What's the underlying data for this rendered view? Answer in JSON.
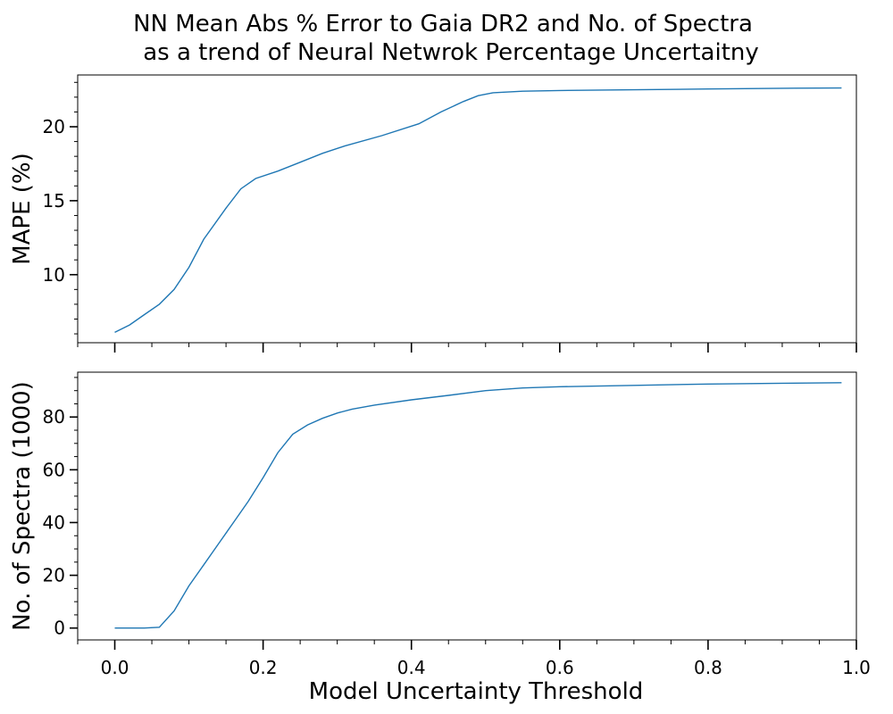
{
  "figure": {
    "title_line1": "NN Mean Abs % Error to Gaia DR2 and No. of Spectra",
    "title_line2": "as a trend of Neural Netwrok Percentage Uncertaitny"
  },
  "chart_data": [
    {
      "type": "line",
      "ylabel": "MAPE (%)",
      "xlim": [
        -0.05,
        1.0
      ],
      "ylim": [
        5.4,
        23.5
      ],
      "yticks": [
        10,
        15,
        20
      ],
      "yminor_step": 1,
      "xticks_major": [
        0.0,
        0.2,
        0.4,
        0.6,
        0.8,
        1.0
      ],
      "xtick_labels_shown": false,
      "series": [
        {
          "color": "#1f77b4",
          "x": [
            0.0,
            0.02,
            0.04,
            0.06,
            0.08,
            0.1,
            0.12,
            0.15,
            0.17,
            0.19,
            0.22,
            0.25,
            0.28,
            0.31,
            0.36,
            0.41,
            0.44,
            0.47,
            0.49,
            0.51,
            0.53,
            0.55,
            0.6,
            0.7,
            0.8,
            0.9,
            0.98
          ],
          "y": [
            6.1,
            6.6,
            7.3,
            8.0,
            9.0,
            10.5,
            12.4,
            14.5,
            15.8,
            16.5,
            17.0,
            17.6,
            18.2,
            18.7,
            19.4,
            20.2,
            21.0,
            21.7,
            22.1,
            22.3,
            22.35,
            22.4,
            22.45,
            22.5,
            22.55,
            22.6,
            22.62
          ]
        }
      ]
    },
    {
      "type": "line",
      "xlabel": "Model Uncertainty Threshold",
      "ylabel": "No. of Spectra (1000)",
      "xlim": [
        -0.05,
        1.0
      ],
      "ylim": [
        -4.5,
        97
      ],
      "yticks": [
        0,
        20,
        40,
        60,
        80
      ],
      "yminor_step": 5,
      "xticks": [
        0.0,
        0.2,
        0.4,
        0.6,
        0.8,
        1.0
      ],
      "xtick_labels": [
        "0.0",
        "0.2",
        "0.4",
        "0.6",
        "0.8",
        "1.0"
      ],
      "series": [
        {
          "color": "#1f77b4",
          "x": [
            0.0,
            0.02,
            0.04,
            0.06,
            0.08,
            0.1,
            0.12,
            0.14,
            0.16,
            0.18,
            0.2,
            0.22,
            0.24,
            0.26,
            0.28,
            0.3,
            0.32,
            0.35,
            0.4,
            0.45,
            0.5,
            0.55,
            0.6,
            0.7,
            0.8,
            0.9,
            0.98
          ],
          "y": [
            0.0,
            0.0,
            0.0,
            0.3,
            6.5,
            16.0,
            24.0,
            32.0,
            40.0,
            48.0,
            57.0,
            66.5,
            73.5,
            77.0,
            79.5,
            81.5,
            83.0,
            84.5,
            86.5,
            88.2,
            90.0,
            91.0,
            91.5,
            92.0,
            92.5,
            92.8,
            93.0
          ]
        }
      ]
    }
  ]
}
